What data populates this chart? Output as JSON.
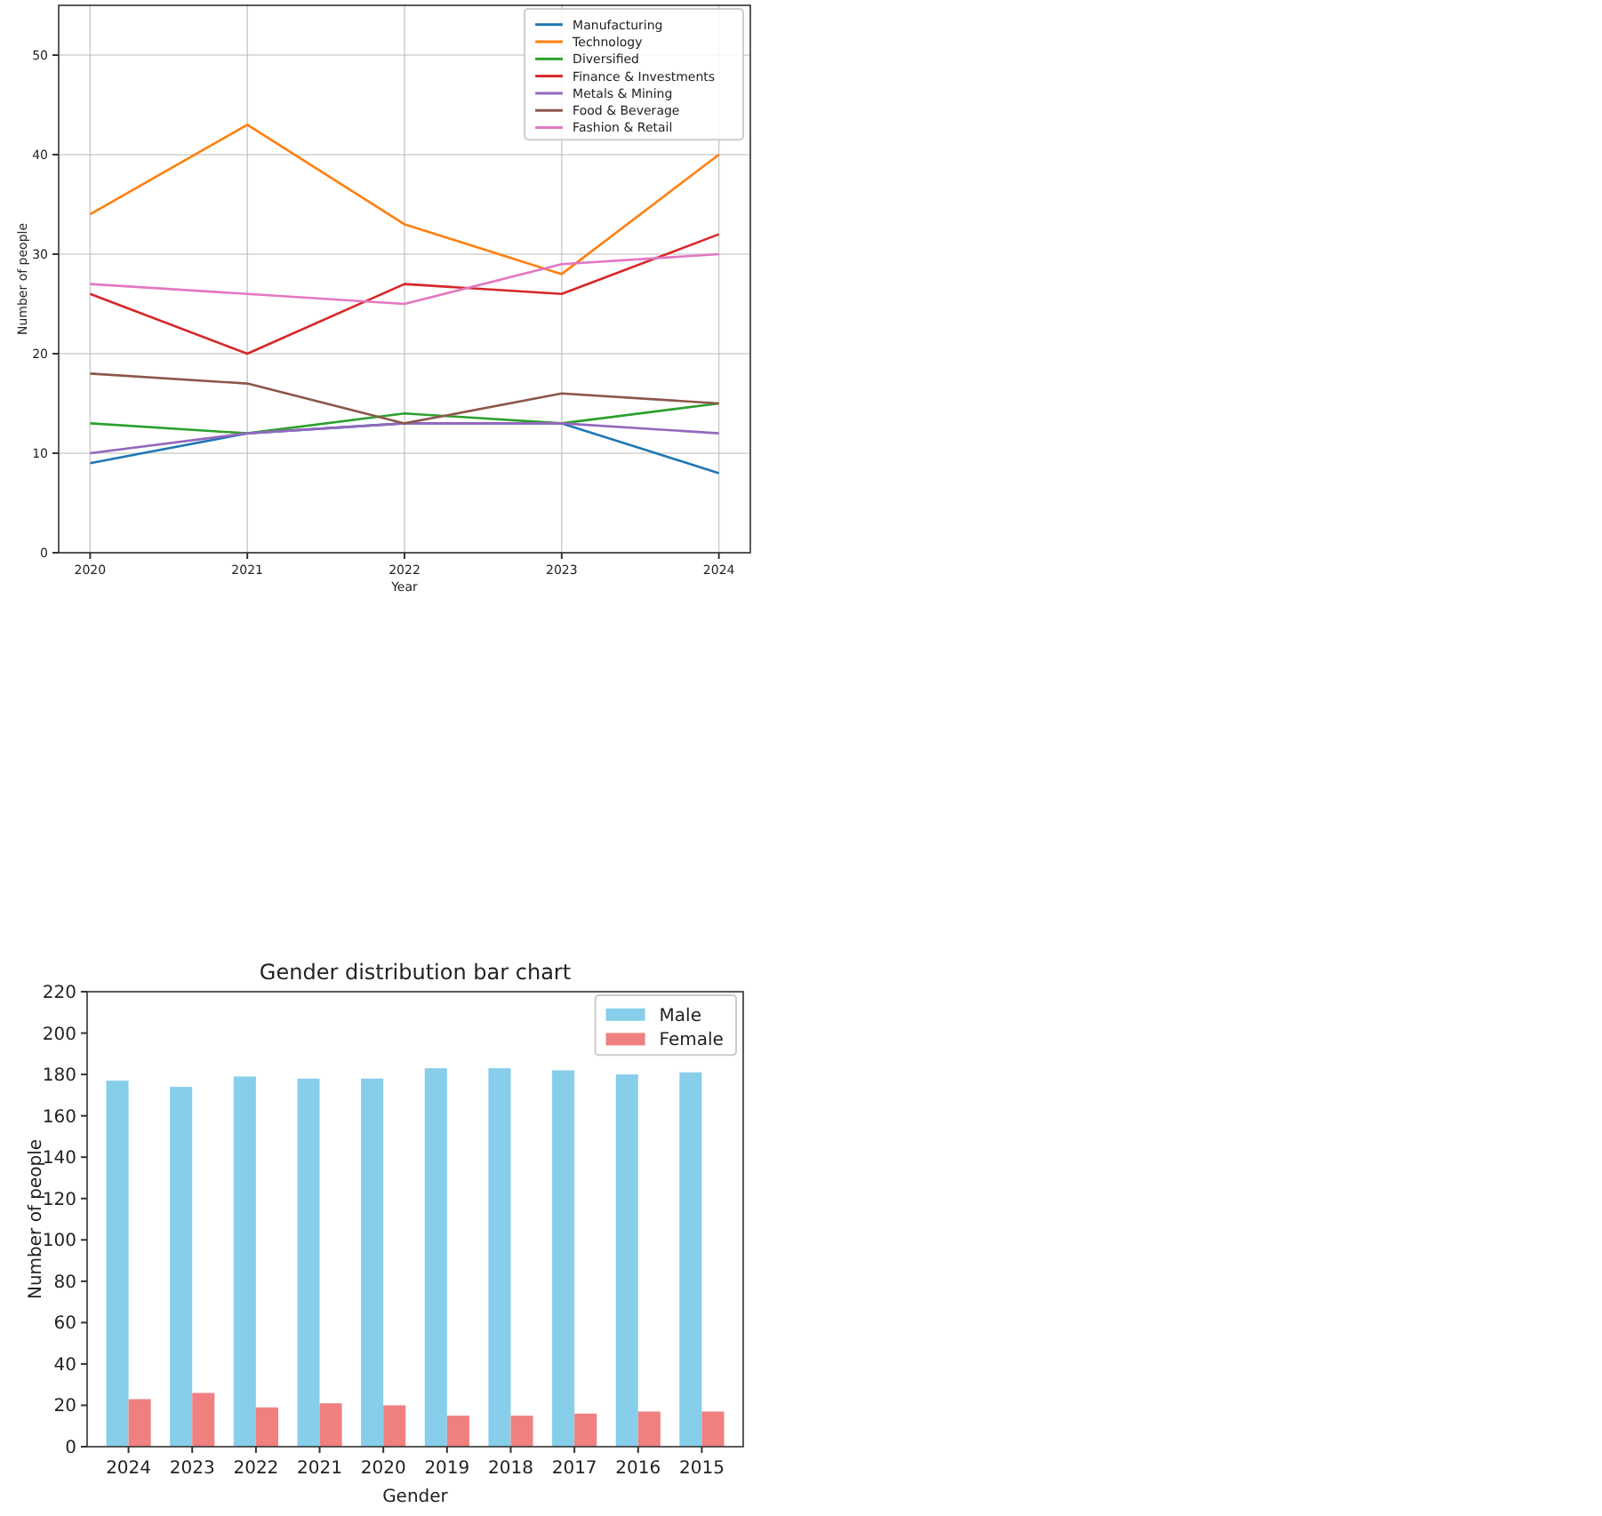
{
  "chart_data": [
    {
      "type": "line",
      "xlabel": "Year",
      "ylabel": "Number of people",
      "x": [
        2020,
        2021,
        2022,
        2023,
        2024
      ],
      "xlim": [
        2019.8,
        2024.2
      ],
      "xticks": [
        2020,
        2021,
        2022,
        2023,
        2024
      ],
      "ylim": [
        0,
        55
      ],
      "yticks": [
        0,
        10,
        20,
        30,
        40,
        50
      ],
      "grid": true,
      "legend": "top right",
      "series": [
        {
          "name": "Manufacturing",
          "color": "#1f77b4",
          "values": [
            9,
            12,
            13,
            13,
            8
          ]
        },
        {
          "name": "Technology",
          "color": "#ff7f0e",
          "values": [
            34,
            43,
            33,
            28,
            40
          ]
        },
        {
          "name": "Diversified",
          "color": "#2ca02c",
          "values": [
            13,
            12,
            14,
            13,
            15
          ]
        },
        {
          "name": "Finance & Investments",
          "color": "#d62728",
          "values": [
            26,
            20,
            27,
            26,
            32
          ]
        },
        {
          "name": "Metals & Mining",
          "color": "#9467bd",
          "values": [
            10,
            12,
            13,
            13,
            12
          ]
        },
        {
          "name": "Food & Beverage",
          "color": "#8c564b",
          "values": [
            18,
            17,
            13,
            16,
            15
          ]
        },
        {
          "name": "Fashion & Retail",
          "color": "#e377c2",
          "values": [
            27,
            26,
            25,
            29,
            30
          ]
        }
      ]
    },
    {
      "type": "bar",
      "title": "Gender distribution bar chart",
      "xlabel": "Gender",
      "ylabel": "Number of people",
      "categories": [
        "2024",
        "2023",
        "2022",
        "2021",
        "2020",
        "2019",
        "2018",
        "2017",
        "2016",
        "2015"
      ],
      "ylim": [
        0,
        220
      ],
      "yticks": [
        0,
        20,
        40,
        60,
        80,
        100,
        120,
        140,
        160,
        180,
        200,
        220
      ],
      "legend": "top right",
      "series": [
        {
          "name": "Male",
          "color": "#87ceeb",
          "values": [
            177,
            174,
            179,
            178,
            178,
            183,
            183,
            182,
            180,
            181
          ]
        },
        {
          "name": "Female",
          "color": "#f08080",
          "values": [
            23,
            26,
            19,
            21,
            20,
            15,
            15,
            16,
            17,
            17
          ]
        }
      ]
    }
  ]
}
